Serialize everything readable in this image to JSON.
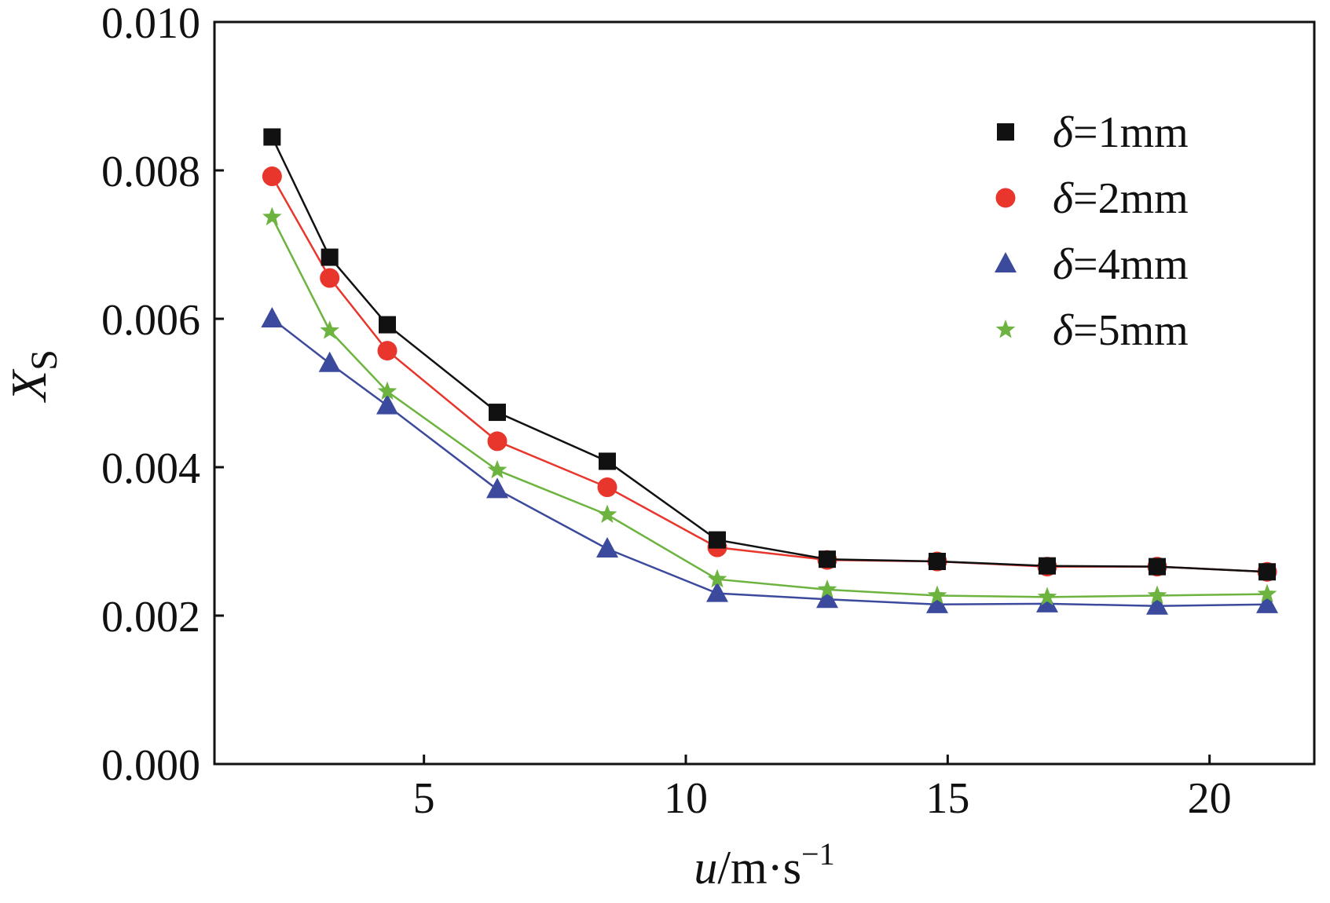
{
  "chart_data": {
    "type": "line",
    "title": "",
    "xlabel": {
      "var": "u",
      "slash": "/",
      "unit": "m·s",
      "exp": "−1"
    },
    "ylabel": {
      "var": "X",
      "sub": "S"
    },
    "xlim": [
      1,
      22
    ],
    "ylim": [
      0,
      0.01
    ],
    "x_ticks": [
      5,
      10,
      15,
      20
    ],
    "x_tick_labels": [
      "5",
      "10",
      "15",
      "20"
    ],
    "y_ticks": [
      0.0,
      0.002,
      0.004,
      0.006,
      0.008,
      0.01
    ],
    "y_tick_labels": [
      "0.000",
      "0.002",
      "0.004",
      "0.006",
      "0.008",
      "0.010"
    ],
    "legend_position": "top-right",
    "series": [
      {
        "name": "δ=1mm",
        "symbol": "δ",
        "label": "=1mm",
        "marker": "square",
        "color": "#111111",
        "line_color": "#111111",
        "x": [
          2.1,
          3.2,
          4.3,
          6.4,
          8.5,
          10.6,
          12.7,
          14.8,
          16.9,
          19.0,
          21.1
        ],
        "y": [
          0.00845,
          0.00683,
          0.00592,
          0.00474,
          0.00408,
          0.00302,
          0.00276,
          0.00273,
          0.00267,
          0.00266,
          0.00259
        ]
      },
      {
        "name": "δ=2mm",
        "symbol": "δ",
        "label": "=2mm",
        "marker": "circle",
        "color": "#e8362d",
        "line_color": "#e8362d",
        "x": [
          2.1,
          3.2,
          4.3,
          6.4,
          8.5,
          10.6,
          12.7,
          14.8,
          16.9,
          19.0,
          21.1
        ],
        "y": [
          0.00792,
          0.00655,
          0.00557,
          0.00435,
          0.00373,
          0.00292,
          0.00275,
          0.00273,
          0.00266,
          0.00266,
          0.00259
        ]
      },
      {
        "name": "δ=4mm",
        "symbol": "δ",
        "label": "=4mm",
        "marker": "triangle",
        "color": "#3c4a9e",
        "line_color": "#3c4a9e",
        "x": [
          2.1,
          3.2,
          4.3,
          6.4,
          8.5,
          10.6,
          12.7,
          14.8,
          16.9,
          19.0,
          21.1
        ],
        "y": [
          0.006,
          0.0054,
          0.00483,
          0.0037,
          0.0029,
          0.0023,
          0.00222,
          0.00215,
          0.00216,
          0.00213,
          0.00215
        ]
      },
      {
        "name": "δ=5mm",
        "symbol": "δ",
        "label": "=5mm",
        "marker": "star",
        "color": "#6db33f",
        "line_color": "#6db33f",
        "x": [
          2.1,
          3.2,
          4.3,
          6.4,
          8.5,
          10.6,
          12.7,
          14.8,
          16.9,
          19.0,
          21.1
        ],
        "y": [
          0.00737,
          0.00584,
          0.00502,
          0.00396,
          0.00336,
          0.00249,
          0.00235,
          0.00227,
          0.00225,
          0.00227,
          0.00229
        ]
      }
    ]
  }
}
